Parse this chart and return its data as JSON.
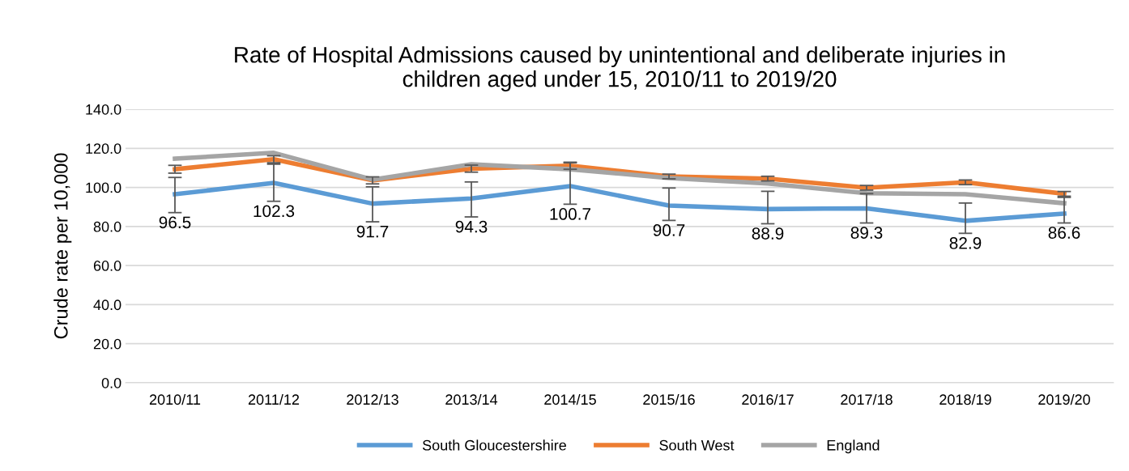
{
  "chart_data": {
    "type": "line",
    "title": "Rate of Hospital Admissions caused by unintentional and deliberate injuries in\nchildren aged under 15, 2010/11 to 2019/20",
    "ylabel": "Crude rate per 10,000",
    "categories": [
      "2010/11",
      "2011/12",
      "2012/13",
      "2013/14",
      "2014/15",
      "2015/16",
      "2016/17",
      "2017/18",
      "2018/19",
      "2019/20"
    ],
    "series": [
      {
        "name": "South Gloucestershire",
        "color": "#5b9bd5",
        "values": [
          96.5,
          102.3,
          91.7,
          94.3,
          100.7,
          90.7,
          88.9,
          89.3,
          82.9,
          86.6
        ],
        "value_labels": [
          "96.5",
          "102.3",
          "91.7",
          "94.3",
          "100.7",
          "90.7",
          "88.9",
          "89.3",
          "82.9",
          "86.6"
        ],
        "errors": [
          [
            87.1,
            105.1
          ],
          [
            92.9,
            111.9
          ],
          [
            82.4,
            100.3
          ],
          [
            84.9,
            102.8
          ],
          [
            91.4,
            112.6
          ],
          [
            83.1,
            99.7
          ],
          [
            81.4,
            98.0
          ],
          [
            81.8,
            96.8
          ],
          [
            76.5,
            92.0
          ],
          [
            81.8,
            94.9
          ]
        ]
      },
      {
        "name": "South West",
        "color": "#ed7d31",
        "values": [
          109.3,
          114.4,
          103.6,
          109.6,
          111.1,
          105.6,
          104.5,
          99.8,
          102.6,
          96.7
        ],
        "errors": [
          2.0,
          1.8,
          1.8,
          1.8,
          1.8,
          1.2,
          1.2,
          1.2,
          1.2,
          1.2
        ]
      },
      {
        "name": "England",
        "color": "#a5a5a5",
        "values": [
          114.7,
          117.7,
          104.0,
          111.8,
          109.3,
          104.8,
          102.0,
          97.0,
          96.5,
          91.9
        ]
      }
    ],
    "ylim": [
      0,
      140
    ],
    "yticks": [
      {
        "value": 0,
        "label": "0.0"
      },
      {
        "value": 20,
        "label": "20.0"
      },
      {
        "value": 40,
        "label": "40.0"
      },
      {
        "value": 60,
        "label": "60.0"
      },
      {
        "value": 80,
        "label": "80.0"
      },
      {
        "value": 100,
        "label": "100.0"
      },
      {
        "value": 120,
        "label": "120.0"
      },
      {
        "value": 140,
        "label": "140.0"
      }
    ],
    "grid": "y",
    "legend": "bottom",
    "marker": "none",
    "line_style": "solid"
  }
}
